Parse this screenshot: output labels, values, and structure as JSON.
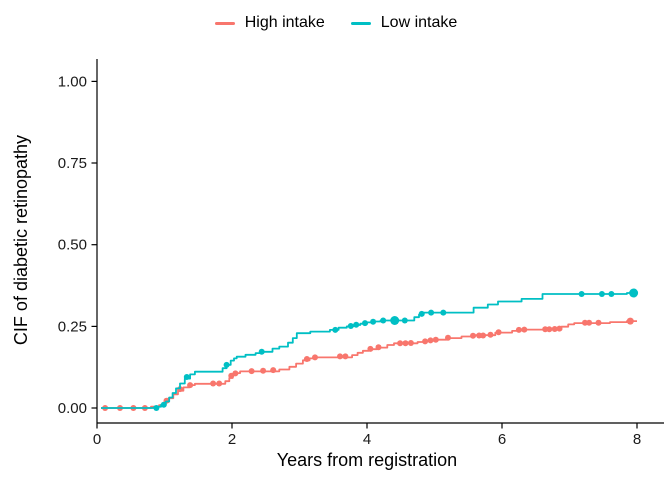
{
  "chart_data": {
    "type": "line",
    "subtype": "step-cumulative-incidence",
    "title": "",
    "xlabel": "Years from registration",
    "ylabel": "CIF of diabetic retinopathy",
    "xlim": [
      0,
      8
    ],
    "ylim": [
      0,
      1
    ],
    "grid": false,
    "legend_position": "top-center",
    "axis_color": "#000000",
    "background": "#ffffff",
    "x_ticks": [
      {
        "value": 0,
        "label": "0"
      },
      {
        "value": 2,
        "label": "2"
      },
      {
        "value": 4,
        "label": "4"
      },
      {
        "value": 6,
        "label": "6"
      },
      {
        "value": 8,
        "label": "8"
      }
    ],
    "y_ticks": [
      {
        "value": 0.0,
        "label": "0.00"
      },
      {
        "value": 0.25,
        "label": "0.25"
      },
      {
        "value": 0.5,
        "label": "0.50"
      },
      {
        "value": 0.75,
        "label": "0.75"
      },
      {
        "value": 1.0,
        "label": "1.00"
      }
    ],
    "series": [
      {
        "name": "High intake",
        "color": "#F8766D",
        "end_x": 8.0,
        "steps": [
          [
            0.06,
            0
          ],
          [
            0.8,
            0.004
          ],
          [
            0.92,
            0.009
          ],
          [
            1.0,
            0.018
          ],
          [
            1.06,
            0.03
          ],
          [
            1.13,
            0.042
          ],
          [
            1.2,
            0.053
          ],
          [
            1.28,
            0.063
          ],
          [
            1.37,
            0.07
          ],
          [
            1.45,
            0.074
          ],
          [
            1.9,
            0.082
          ],
          [
            1.96,
            0.092
          ],
          [
            2.01,
            0.101
          ],
          [
            2.06,
            0.107
          ],
          [
            2.12,
            0.112
          ],
          [
            2.7,
            0.118
          ],
          [
            2.85,
            0.126
          ],
          [
            2.95,
            0.136
          ],
          [
            3.05,
            0.146
          ],
          [
            3.15,
            0.152
          ],
          [
            3.23,
            0.155
          ],
          [
            3.78,
            0.162
          ],
          [
            3.86,
            0.169
          ],
          [
            3.94,
            0.175
          ],
          [
            4.03,
            0.18
          ],
          [
            4.15,
            0.185
          ],
          [
            4.3,
            0.193
          ],
          [
            4.4,
            0.198
          ],
          [
            4.75,
            0.202
          ],
          [
            4.88,
            0.206
          ],
          [
            5.0,
            0.209
          ],
          [
            5.18,
            0.214
          ],
          [
            5.4,
            0.219
          ],
          [
            5.6,
            0.223
          ],
          [
            5.9,
            0.231
          ],
          [
            6.15,
            0.236
          ],
          [
            6.28,
            0.24
          ],
          [
            6.88,
            0.249
          ],
          [
            6.98,
            0.256
          ],
          [
            7.07,
            0.26
          ],
          [
            7.6,
            0.263
          ],
          [
            7.85,
            0.266
          ]
        ],
        "markers": [
          [
            0.12,
            0
          ],
          [
            0.34,
            0
          ],
          [
            0.54,
            0
          ],
          [
            0.71,
            0
          ],
          [
            1.03,
            0.022
          ],
          [
            1.23,
            0.058
          ],
          [
            1.38,
            0.07
          ],
          [
            1.72,
            0.075
          ],
          [
            1.81,
            0.075
          ],
          [
            1.99,
            0.099
          ],
          [
            2.05,
            0.106
          ],
          [
            2.29,
            0.113
          ],
          [
            2.46,
            0.114
          ],
          [
            2.61,
            0.116
          ],
          [
            3.11,
            0.15
          ],
          [
            3.23,
            0.155
          ],
          [
            3.6,
            0.158
          ],
          [
            3.68,
            0.158
          ],
          [
            4.05,
            0.181
          ],
          [
            4.17,
            0.186
          ],
          [
            4.49,
            0.198
          ],
          [
            4.57,
            0.198
          ],
          [
            4.65,
            0.199
          ],
          [
            4.86,
            0.204
          ],
          [
            4.94,
            0.207
          ],
          [
            5.02,
            0.209
          ],
          [
            5.2,
            0.215
          ],
          [
            5.57,
            0.221
          ],
          [
            5.66,
            0.222
          ],
          [
            5.72,
            0.222
          ],
          [
            5.83,
            0.224
          ],
          [
            5.95,
            0.232
          ],
          [
            6.25,
            0.239
          ],
          [
            6.33,
            0.24
          ],
          [
            6.64,
            0.241
          ],
          [
            6.7,
            0.241
          ],
          [
            6.78,
            0.242
          ],
          [
            6.85,
            0.243
          ],
          [
            7.23,
            0.261
          ],
          [
            7.29,
            0.261
          ],
          [
            7.43,
            0.261
          ],
          [
            7.9,
            0.266,
            3.5
          ]
        ]
      },
      {
        "name": "Low intake",
        "color": "#00BFC4",
        "end_x": 8.0,
        "steps": [
          [
            0.06,
            0
          ],
          [
            0.85,
            0.004
          ],
          [
            0.95,
            0.01
          ],
          [
            1.02,
            0.02
          ],
          [
            1.07,
            0.032
          ],
          [
            1.12,
            0.046
          ],
          [
            1.17,
            0.06
          ],
          [
            1.23,
            0.075
          ],
          [
            1.3,
            0.09
          ],
          [
            1.38,
            0.103
          ],
          [
            1.45,
            0.111
          ],
          [
            1.86,
            0.122
          ],
          [
            1.92,
            0.132
          ],
          [
            1.98,
            0.145
          ],
          [
            2.03,
            0.152
          ],
          [
            2.07,
            0.157
          ],
          [
            2.2,
            0.163
          ],
          [
            2.35,
            0.168
          ],
          [
            2.44,
            0.172
          ],
          [
            2.6,
            0.182
          ],
          [
            2.7,
            0.188
          ],
          [
            2.83,
            0.2
          ],
          [
            2.9,
            0.214
          ],
          [
            2.96,
            0.229
          ],
          [
            3.16,
            0.234
          ],
          [
            3.45,
            0.239
          ],
          [
            3.58,
            0.246
          ],
          [
            3.7,
            0.25
          ],
          [
            3.8,
            0.254
          ],
          [
            3.9,
            0.258
          ],
          [
            4.0,
            0.262
          ],
          [
            4.1,
            0.265
          ],
          [
            4.2,
            0.268
          ],
          [
            4.7,
            0.278
          ],
          [
            4.77,
            0.286
          ],
          [
            4.84,
            0.292
          ],
          [
            5.58,
            0.307
          ],
          [
            5.79,
            0.317
          ],
          [
            5.94,
            0.326
          ],
          [
            6.29,
            0.334
          ],
          [
            6.6,
            0.349
          ],
          [
            7.85,
            0.352
          ]
        ],
        "markers": [
          [
            0.88,
            0
          ],
          [
            0.99,
            0.01
          ],
          [
            1.33,
            0.095
          ],
          [
            1.92,
            0.132
          ],
          [
            2.44,
            0.172
          ],
          [
            3.53,
            0.239
          ],
          [
            3.76,
            0.251
          ],
          [
            3.84,
            0.255
          ],
          [
            3.97,
            0.26
          ],
          [
            4.09,
            0.264
          ],
          [
            4.24,
            0.268
          ],
          [
            4.41,
            0.268,
            4.5
          ],
          [
            4.56,
            0.268
          ],
          [
            4.81,
            0.288
          ],
          [
            4.95,
            0.292
          ],
          [
            5.13,
            0.292
          ],
          [
            7.18,
            0.349
          ],
          [
            7.48,
            0.349
          ],
          [
            7.62,
            0.349
          ],
          [
            7.95,
            0.352,
            4.5
          ]
        ]
      }
    ]
  }
}
